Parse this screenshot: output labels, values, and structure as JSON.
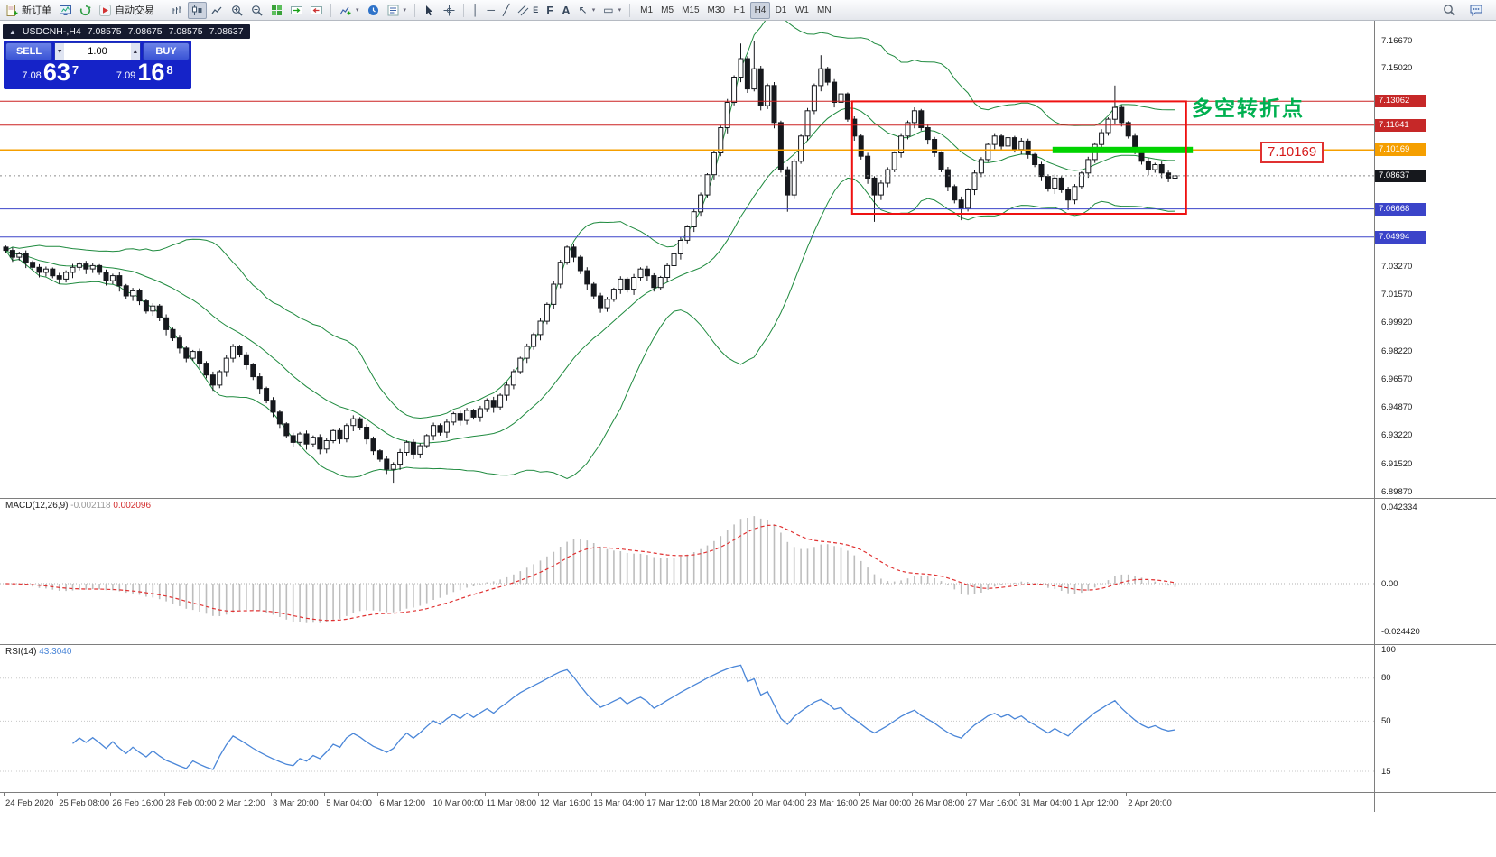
{
  "toolbar": {
    "new_order_label": "新订单",
    "autotrading_label": "自动交易",
    "timeframes": [
      "M1",
      "M5",
      "M15",
      "M30",
      "H1",
      "H4",
      "D1",
      "W1",
      "MN"
    ],
    "active_timeframe": "H4",
    "glyphs": {
      "spinner_down": "▼",
      "spinner_up": "▲",
      "dropdown": "▾",
      "vline": "│",
      "hline": "─",
      "trendline": "╱",
      "channel_letter": "E",
      "fibonacci": "F",
      "text_tool": "A",
      "arrow_tool": "↖",
      "shapes_tool": "▭",
      "collapse": "▲"
    }
  },
  "chart": {
    "title": "USDCNH-,H4",
    "ohlc_open": "7.08575",
    "ohlc_high": "7.08675",
    "ohlc_low": "7.08575",
    "ohlc_close": "7.08637",
    "annotation": "多空转折点",
    "price_label": "7.10169",
    "trade_panel": {
      "sell_label": "SELL",
      "buy_label": "BUY",
      "volume": "1.00",
      "sell_small": "7.08",
      "sell_big": "63",
      "sell_sup": "7",
      "buy_small": "7.09",
      "buy_big": "16",
      "buy_sup": "8"
    }
  },
  "macd": {
    "label": "MACD(12,26,9)",
    "value_main": "-0.002118",
    "value_signal": "0.002096",
    "scale": [
      {
        "text": "0.042334",
        "value": 0.042334
      },
      {
        "text": "0.00",
        "value": 0
      },
      {
        "text": "-0.024420",
        "value": -0.02442
      }
    ]
  },
  "rsi": {
    "label": "RSI(14)",
    "value": "43.3040",
    "scale": [
      {
        "text": "100",
        "value": 100
      },
      {
        "text": "80",
        "value": 80
      },
      {
        "text": "50",
        "value": 50
      },
      {
        "text": "15",
        "value": 15
      }
    ]
  },
  "axis_dates": [
    "24 Feb 2020",
    "25 Feb 08:00",
    "26 Feb 16:00",
    "28 Feb 00:00",
    "2 Mar 12:00",
    "3 Mar 20:00",
    "5 Mar 04:00",
    "6 Mar 12:00",
    "10 Mar 00:00",
    "11 Mar 08:00",
    "12 Mar 16:00",
    "16 Mar 04:00",
    "17 Mar 12:00",
    "18 Mar 20:00",
    "20 Mar 04:00",
    "23 Mar 16:00",
    "25 Mar 00:00",
    "26 Mar 08:00",
    "27 Mar 16:00",
    "31 Mar 04:00",
    "1 Apr 12:00",
    "2 Apr 20:00"
  ],
  "price_scale": {
    "labels": [
      "7.16670",
      "7.15020",
      "7.03270",
      "7.01570",
      "6.99920",
      "6.98220",
      "6.96570",
      "6.94870",
      "6.93220",
      "6.91520",
      "6.89870"
    ],
    "tags": [
      {
        "text": "7.13062",
        "price": 7.13062,
        "bg": "#c62828"
      },
      {
        "text": "7.11641",
        "price": 7.11641,
        "bg": "#c62828"
      },
      {
        "text": "7.10169",
        "price": 7.10169,
        "bg": "#f59f00"
      },
      {
        "text": "7.06668",
        "price": 7.06668,
        "bg": "#3b44c9"
      },
      {
        "text": "7.04994",
        "price": 7.04994,
        "bg": "#3b44c9"
      },
      {
        "text": "7.08637",
        "price": 7.08637,
        "bg": "#16181d"
      }
    ]
  },
  "chart_data": {
    "type": "candlestick",
    "symbol": "USDCNH-",
    "timeframe": "H4",
    "price_axis": {
      "min": 6.8987,
      "max": 7.1667
    },
    "first_open": 7.044,
    "closes": [
      7.042,
      7.038,
      7.04,
      7.035,
      7.032,
      7.029,
      7.031,
      7.027,
      7.025,
      7.029,
      7.032,
      7.034,
      7.031,
      7.033,
      7.029,
      7.024,
      7.027,
      7.021,
      7.015,
      7.018,
      7.012,
      7.006,
      7.009,
      7.002,
      6.995,
      6.99,
      6.984,
      6.978,
      6.982,
      6.975,
      6.968,
      6.962,
      6.97,
      6.978,
      6.985,
      6.98,
      6.974,
      6.967,
      6.96,
      6.953,
      6.946,
      6.939,
      6.932,
      6.928,
      6.933,
      6.927,
      6.931,
      6.924,
      6.929,
      6.935,
      6.93,
      6.938,
      6.942,
      6.937,
      6.93,
      6.923,
      6.918,
      6.912,
      6.915,
      6.922,
      6.928,
      6.921,
      6.926,
      6.932,
      6.938,
      6.934,
      6.94,
      6.945,
      6.941,
      6.947,
      6.943,
      6.948,
      6.953,
      6.949,
      6.956,
      6.962,
      6.97,
      6.978,
      6.985,
      6.992,
      7.0,
      7.01,
      7.022,
      7.035,
      7.044,
      7.038,
      7.03,
      7.022,
      7.015,
      7.008,
      7.013,
      7.019,
      7.025,
      7.019,
      7.026,
      7.031,
      7.027,
      7.02,
      7.026,
      7.033,
      7.04,
      7.048,
      7.056,
      7.065,
      7.075,
      7.087,
      7.1,
      7.115,
      7.13,
      7.145,
      7.156,
      7.138,
      7.15,
      7.128,
      7.14,
      7.118,
      7.09,
      7.075,
      7.095,
      7.11,
      7.125,
      7.14,
      7.15,
      7.142,
      7.13,
      7.135,
      7.12,
      7.11,
      7.098,
      7.085,
      7.075,
      7.082,
      7.09,
      7.1,
      7.11,
      7.118,
      7.125,
      7.115,
      7.108,
      7.1,
      7.09,
      7.08,
      7.072,
      7.067,
      7.078,
      7.088,
      7.096,
      7.105,
      7.11,
      7.104,
      7.109,
      7.102,
      7.107,
      7.099,
      7.093,
      7.086,
      7.079,
      7.085,
      7.078,
      7.072,
      7.08,
      7.088,
      7.096,
      7.105,
      7.112,
      7.12,
      7.127,
      7.118,
      7.11,
      7.102,
      7.095,
      7.09,
      7.093,
      7.088,
      7.085,
      7.08637
    ],
    "wick_pattern": [
      0.0015,
      0.0028,
      0.002,
      0.0034,
      0.0018,
      0.003,
      0.0024
    ],
    "hl_overrides": {
      "58": {
        "low": 6.904
      },
      "110": {
        "high": 7.165
      },
      "112": {
        "high": 7.1667
      },
      "117": {
        "low": 7.065
      },
      "122": {
        "high": 7.158
      },
      "130": {
        "low": 7.059
      },
      "143": {
        "low": 7.06
      },
      "159": {
        "low": 7.066
      },
      "166": {
        "high": 7.14
      }
    },
    "bollinger": {
      "period": 20,
      "deviation": 2,
      "color": "#1e8a3e"
    },
    "hlines": [
      {
        "price": 7.13062,
        "color": "#cc2020",
        "width": 1
      },
      {
        "price": 7.11641,
        "color": "#cc2020",
        "width": 1
      },
      {
        "price": 7.10169,
        "color": "#f59f00",
        "width": 1.5
      },
      {
        "price": 7.06668,
        "color": "#3b44c9",
        "width": 1
      },
      {
        "price": 7.04994,
        "color": "#3b44c9",
        "width": 1
      }
    ],
    "current_price": 7.08637,
    "rectangle": {
      "bar_start": 127,
      "bar_end": 177,
      "price_top": 7.1306,
      "price_bottom": 7.0638,
      "color": "#ee1111"
    },
    "green_band": {
      "bar_start": 157,
      "bar_end": 178,
      "price": 7.10169,
      "color": "#00d300",
      "thickness": 7
    },
    "macd": {
      "fast": 12,
      "slow": 26,
      "signal": 9,
      "hist_color": "#bdbdbd",
      "signal_color": "#e03131",
      "range_top": 0.042334,
      "range_bottom": -0.02442
    },
    "rsi": {
      "period": 14,
      "color": "#4a86d8",
      "levels": [
        80,
        50,
        15
      ]
    }
  }
}
